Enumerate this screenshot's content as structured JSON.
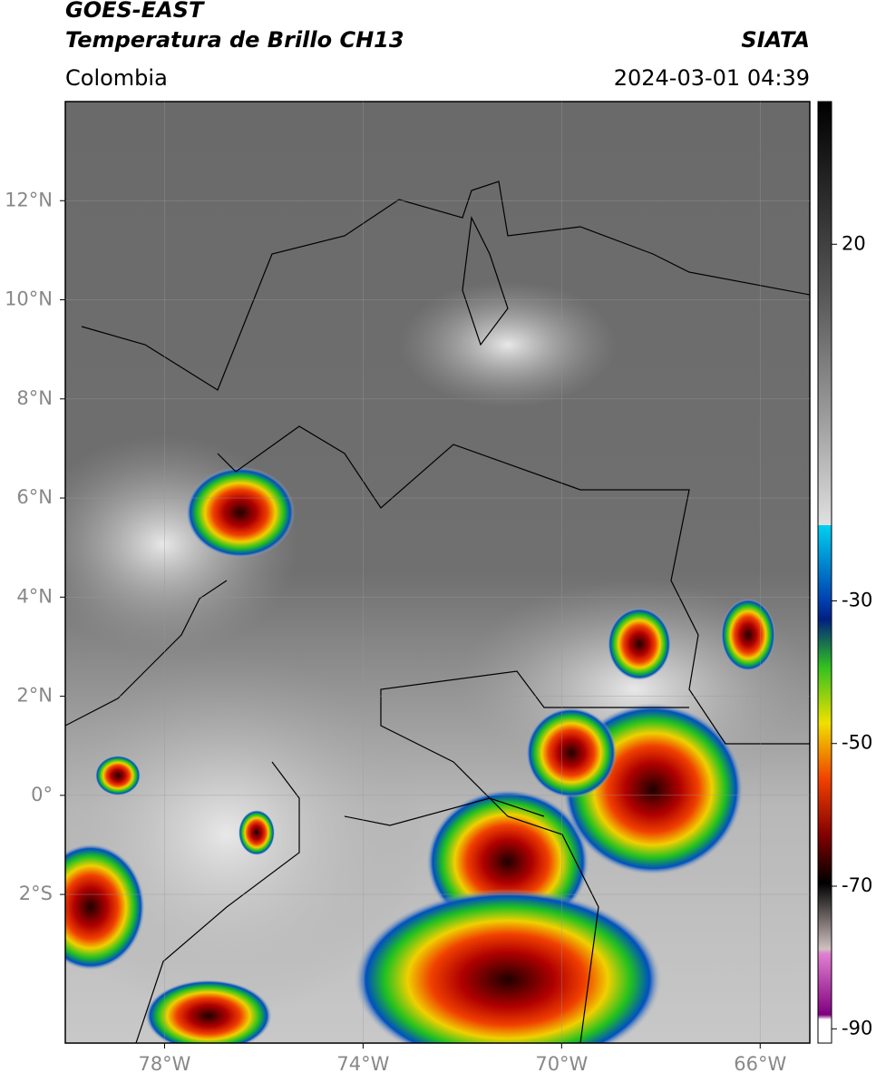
{
  "header": {
    "title": "GOES-EAST",
    "subtitle": "Temperatura de Brillo CH13",
    "region": "Colombia",
    "source": "SIATA",
    "datetime": "2024-03-01 04:39"
  },
  "map": {
    "xlim": [
      -80,
      -65
    ],
    "ylim": [
      -5,
      14
    ],
    "xticks": [
      {
        "value": -78,
        "label": "78°W"
      },
      {
        "value": -74,
        "label": "74°W"
      },
      {
        "value": -70,
        "label": "70°W"
      },
      {
        "value": -66,
        "label": "66°W"
      }
    ],
    "yticks": [
      {
        "value": 12,
        "label": "12°N"
      },
      {
        "value": 10,
        "label": "10°N"
      },
      {
        "value": 8,
        "label": "8°N"
      },
      {
        "value": 6,
        "label": "6°N"
      },
      {
        "value": 4,
        "label": "4°N"
      },
      {
        "value": 2,
        "label": "2°N"
      },
      {
        "value": 0,
        "label": "0°"
      },
      {
        "value": -2,
        "label": "2°S"
      }
    ],
    "grid": true
  },
  "colorbar": {
    "lim": [
      -92,
      40
    ],
    "ticks": [
      20,
      -30,
      -50,
      -70,
      -90
    ]
  }
}
